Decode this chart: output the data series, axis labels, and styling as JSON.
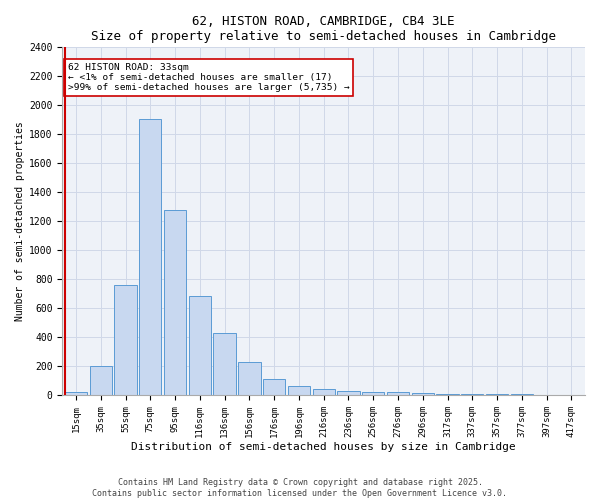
{
  "title1": "62, HISTON ROAD, CAMBRIDGE, CB4 3LE",
  "title2": "Size of property relative to semi-detached houses in Cambridge",
  "xlabel": "Distribution of semi-detached houses by size in Cambridge",
  "ylabel": "Number of semi-detached properties",
  "categories": [
    "15sqm",
    "35sqm",
    "55sqm",
    "75sqm",
    "95sqm",
    "116sqm",
    "136sqm",
    "156sqm",
    "176sqm",
    "196sqm",
    "216sqm",
    "236sqm",
    "256sqm",
    "276sqm",
    "296sqm",
    "317sqm",
    "337sqm",
    "357sqm",
    "377sqm",
    "397sqm",
    "417sqm"
  ],
  "values": [
    20,
    200,
    760,
    1900,
    1275,
    680,
    430,
    230,
    110,
    65,
    40,
    25,
    22,
    20,
    15,
    10,
    8,
    5,
    5,
    2,
    1
  ],
  "bar_color": "#c8d8f0",
  "bar_edge_color": "#5b9bd5",
  "highlight_color": "#cc0000",
  "annotation_text": "62 HISTON ROAD: 33sqm\n← <1% of semi-detached houses are smaller (17)\n>99% of semi-detached houses are larger (5,735) →",
  "annotation_box_edge": "#cc0000",
  "ylim": [
    0,
    2400
  ],
  "yticks": [
    0,
    200,
    400,
    600,
    800,
    1000,
    1200,
    1400,
    1600,
    1800,
    2000,
    2200,
    2400
  ],
  "grid_color": "#d0d8e8",
  "bg_color": "#eef2f8",
  "footer1": "Contains HM Land Registry data © Crown copyright and database right 2025.",
  "footer2": "Contains public sector information licensed under the Open Government Licence v3.0."
}
